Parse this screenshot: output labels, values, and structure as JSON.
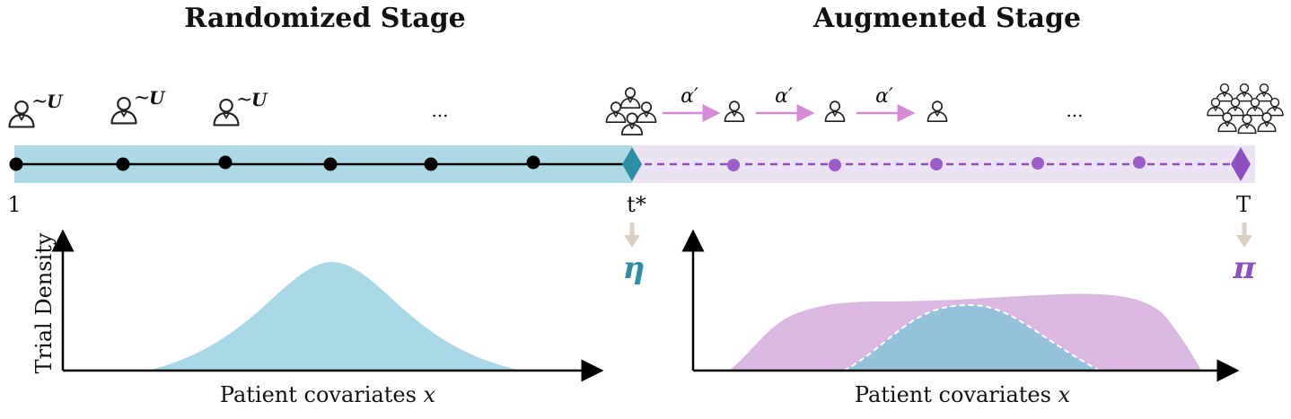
{
  "titles": {
    "left": "Randomized Stage",
    "right": "Augmented Stage"
  },
  "timeline": {
    "start_label": "1",
    "switch_label": "t*",
    "end_label": "T",
    "ellipsis_left": "...",
    "ellipsis_right": "...",
    "tilde": "~",
    "uniform": "U",
    "alpha": "α′"
  },
  "outputs": {
    "eta": "η",
    "pi": "π"
  },
  "plots": {
    "left": {
      "ylabel": "Trial Density",
      "xlabel_prefix": "Patient covariates ",
      "xlabel_var": "x"
    },
    "right": {
      "xlabel_prefix": "Patient covariates ",
      "xlabel_var": "x"
    }
  },
  "colors": {
    "randomized_band": "#add8e6",
    "randomized_accent": "#2e8ea6",
    "augmented_band": "#ece3f2",
    "augmented_accent": "#8e4fc1",
    "density_blue": "#a8d8e6",
    "density_purple": "#dbb8e2",
    "arrow_gray": "#d9cfc4",
    "alpha_arrow": "#d48ad6"
  },
  "icons": [
    "person-icon",
    "group-icon",
    "crowd-icon"
  ]
}
